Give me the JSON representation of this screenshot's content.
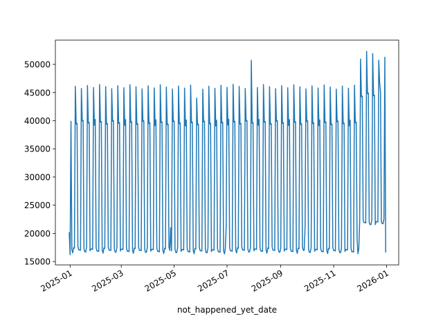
{
  "chart_data": {
    "type": "line",
    "title": "",
    "xlabel": "not_happened_yet_date",
    "ylabel": "",
    "x_ticks": [
      {
        "date": "2025-01-01",
        "label": "2025-01"
      },
      {
        "date": "2025-03-01",
        "label": "2025-03"
      },
      {
        "date": "2025-05-01",
        "label": "2025-05"
      },
      {
        "date": "2025-07-01",
        "label": "2025-07"
      },
      {
        "date": "2025-09-01",
        "label": "2025-09"
      },
      {
        "date": "2025-11-01",
        "label": "2025-11"
      },
      {
        "date": "2026-01-01",
        "label": "2026-01"
      }
    ],
    "y_ticks": [
      {
        "value": 15000,
        "label": "15000"
      },
      {
        "value": 20000,
        "label": "20000"
      },
      {
        "value": 25000,
        "label": "25000"
      },
      {
        "value": 30000,
        "label": "30000"
      },
      {
        "value": 35000,
        "label": "35000"
      },
      {
        "value": 40000,
        "label": "40000"
      },
      {
        "value": 45000,
        "label": "45000"
      },
      {
        "value": 50000,
        "label": "50000"
      }
    ],
    "xlim": [
      "2024-12-15",
      "2026-01-15"
    ],
    "ylim": [
      14400,
      54300
    ],
    "grid": false,
    "line_color": "#1f77b4",
    "pattern": {
      "start": "2024-12-31",
      "end": "2025-12-31",
      "weekly_shape": [
        46000,
        39500,
        39800,
        17200,
        16800,
        17000,
        17100
      ],
      "holiday_shape": [
        51000,
        44500,
        44800,
        22000,
        21800,
        22000,
        22100
      ],
      "holiday_from": "2025-12-01"
    },
    "notable_points": [
      {
        "x": "2024-12-31",
        "y": 20200
      },
      {
        "x": "2025-01-01",
        "y": 16200
      },
      {
        "x": "2025-04-27",
        "y": 21000
      },
      {
        "x": "2025-05-27",
        "y": 44000
      },
      {
        "x": "2025-06-30",
        "y": 21000
      },
      {
        "x": "2025-07-29",
        "y": 50700
      },
      {
        "x": "2025-09-29",
        "y": 21000
      },
      {
        "x": "2025-11-28",
        "y": 19000
      },
      {
        "x": "2025-12-09",
        "y": 52300
      },
      {
        "x": "2025-12-16",
        "y": 51900
      },
      {
        "x": "2025-12-24",
        "y": 46800
      },
      {
        "x": "2025-12-31",
        "y": 16600
      }
    ]
  }
}
